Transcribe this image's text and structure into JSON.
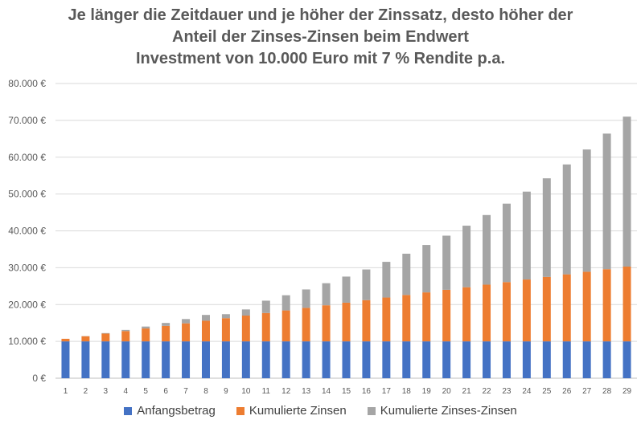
{
  "chart_data": {
    "type": "bar",
    "stacked": true,
    "title_lines": [
      "Je länger die Zeitdauer und je höher der Zinssatz, desto höher der",
      "Anteil der Zinses-Zinsen beim Endwert",
      "Investment von 10.000 Euro mit 7 % Rendite p.a."
    ],
    "categories": [
      "1",
      "2",
      "3",
      "4",
      "5",
      "6",
      "7",
      "8",
      "9",
      "10",
      "11",
      "12",
      "13",
      "14",
      "15",
      "16",
      "17",
      "18",
      "19",
      "20",
      "21",
      "22",
      "23",
      "24",
      "25",
      "26",
      "27",
      "28",
      "29"
    ],
    "series": [
      {
        "name": "Anfangsbetrag",
        "color": "#4472C4",
        "values": [
          10000,
          10000,
          10000,
          10000,
          10000,
          10000,
          10000,
          10000,
          10000,
          10000,
          10000,
          10000,
          10000,
          10000,
          10000,
          10000,
          10000,
          10000,
          10000,
          10000,
          10000,
          10000,
          10000,
          10000,
          10000,
          10000,
          10000,
          10000,
          10000
        ]
      },
      {
        "name": "Kumulierte Zinsen",
        "color": "#ED7D31",
        "values": [
          700,
          1400,
          2100,
          2800,
          3500,
          4200,
          4900,
          5600,
          6300,
          7000,
          7700,
          8400,
          9100,
          9800,
          10500,
          11200,
          11900,
          12600,
          13300,
          14000,
          14700,
          15400,
          16100,
          16800,
          17500,
          18200,
          18900,
          19600,
          20300
        ]
      },
      {
        "name": "Kumulierte Zinses-Zinsen",
        "color": "#A5A5A5",
        "values": [
          0,
          49,
          150,
          308,
          526,
          807,
          1158,
          1582,
          1085,
          1672,
          3349,
          4122,
          4998,
          5990,
          7090,
          8322,
          9688,
          11198,
          12865,
          14697,
          16705,
          18898,
          21278,
          23849,
          26767,
          29832,
          33189,
          36802,
          40703
        ]
      }
    ],
    "ylim": [
      0,
      80000
    ],
    "yticks": [
      0,
      10000,
      20000,
      30000,
      40000,
      50000,
      60000,
      70000,
      80000
    ],
    "ytick_labels": [
      "0 €",
      "10.000 €",
      "20.000 €",
      "30.000 €",
      "40.000 €",
      "50.000 €",
      "60.000 €",
      "70.000 €",
      "80.000 €"
    ],
    "grid": true,
    "legend_position": "bottom"
  }
}
